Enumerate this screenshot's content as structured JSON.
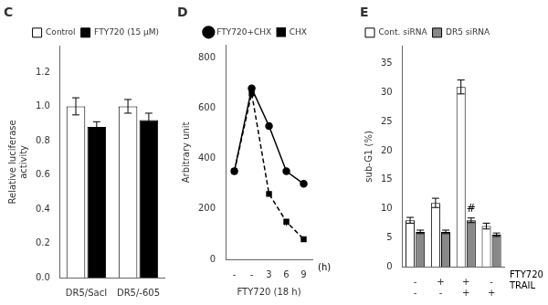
{
  "chart_data": [
    {
      "type": "bar",
      "title": "C",
      "categories": [
        "DR5/SacI",
        "DR5/-605"
      ],
      "series": [
        {
          "name": "Control",
          "color": "white",
          "values": [
            1.0,
            1.0
          ],
          "errors": [
            0.05,
            0.04
          ]
        },
        {
          "name": "FTY720 (15 μM)",
          "color": "black",
          "values": [
            0.88,
            0.92
          ],
          "errors": [
            0.03,
            0.04
          ]
        }
      ],
      "y_label": "Relative luciferase\nactivity",
      "ylim": [
        0,
        1.35
      ],
      "yticks": [
        {
          "value": 0,
          "label": "0.0"
        },
        0.2,
        0.4,
        0.6,
        0.8,
        {
          "value": 1.0,
          "label": "1.0"
        },
        1.2
      ],
      "grid": false,
      "legend": "upper right"
    },
    {
      "type": "line",
      "title": "D",
      "categories": [
        "-",
        "-",
        "3",
        "6",
        "9"
      ],
      "series": [
        {
          "name": "FTY720+CHX",
          "color": "black",
          "marker": "circle",
          "line_style": "solid",
          "values": [
            350,
            680,
            530,
            350,
            300
          ]
        },
        {
          "name": "CHX",
          "color": "black",
          "marker": "square",
          "line_style": "dashed",
          "values": [
            350,
            660,
            260,
            150,
            80
          ]
        }
      ],
      "x_label": "FTY720 (18 h)",
      "tick_row_labels": [
        "(h)"
      ],
      "y_label": "Arbitrary unit",
      "ylim": [
        0,
        850
      ],
      "yticks": [
        0,
        200,
        400,
        600,
        800
      ],
      "annotations": [
        {
          "text": "*",
          "x": 2,
          "y": 240
        },
        {
          "text": "*",
          "x": 3,
          "y": 120
        },
        {
          "text": "*",
          "x": 4,
          "y": 58
        }
      ],
      "grid": false,
      "legend": "upper right"
    },
    {
      "type": "bar",
      "title": "E",
      "categories": [
        [
          "-",
          "-"
        ],
        [
          "+",
          "-"
        ],
        [
          "+",
          "+"
        ],
        [
          "-",
          "+"
        ]
      ],
      "tick_row_labels": [
        "FTY720",
        "TRAIL"
      ],
      "series": [
        {
          "name": "Cont. siRNA",
          "color": "white",
          "values": [
            8,
            11,
            31,
            7
          ],
          "errors": [
            0.5,
            0.8,
            1.2,
            0.5
          ]
        },
        {
          "name": "DR5 siRNA",
          "color": "#888888",
          "values": [
            6,
            6,
            8,
            5.5
          ],
          "errors": [
            0.3,
            0.3,
            0.4,
            0.3
          ]
        }
      ],
      "y_label": "sub-G1 (%)",
      "ylim": [
        0,
        38
      ],
      "yticks": [
        0,
        5,
        10,
        15,
        20,
        25,
        30,
        35
      ],
      "annotations": [
        {
          "text": "#",
          "series": "DR5 siRNA",
          "x": 2,
          "y": 9.4
        }
      ],
      "grid": false,
      "legend": "upper left"
    }
  ]
}
